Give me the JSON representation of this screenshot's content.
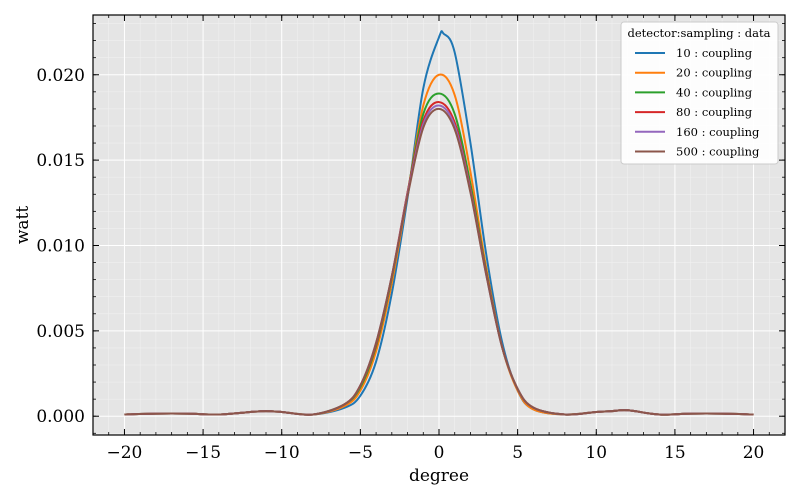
{
  "chart_data": {
    "type": "line",
    "title": "",
    "xlabel": "degree",
    "ylabel": "watt",
    "xlim": [
      -22,
      22
    ],
    "ylim": [
      -0.0011,
      0.0235
    ],
    "xticks": [
      -20,
      -15,
      -10,
      -5,
      0,
      5,
      10,
      15,
      20
    ],
    "xtick_labels": [
      "−20",
      "−15",
      "−10",
      "−5",
      "0",
      "5",
      "10",
      "15",
      "20"
    ],
    "yticks": [
      0.0,
      0.005,
      0.01,
      0.015,
      0.02
    ],
    "ytick_labels": [
      "0.000",
      "0.005",
      "0.010",
      "0.015",
      "0.020"
    ],
    "grid": true,
    "legend": {
      "title": "detector:sampling : data",
      "placement": "top-right"
    },
    "series": [
      {
        "name": "10 : coupling",
        "color": "#1f77b4",
        "x": [
          -20,
          -18,
          -16,
          -14,
          -12,
          -11,
          -10,
          -8,
          -6,
          -5,
          -4,
          -3,
          -2,
          -1,
          0,
          0.3,
          1,
          2,
          3,
          4,
          5,
          6,
          8,
          10,
          11,
          12,
          14,
          16,
          18,
          20
        ],
        "y": [
          0.0001,
          0.00015,
          0.00015,
          0.0001,
          0.00025,
          0.0003,
          0.00025,
          0.0001,
          0.0005,
          0.0012,
          0.0032,
          0.0072,
          0.0128,
          0.0192,
          0.0222,
          0.0224,
          0.0213,
          0.016,
          0.0095,
          0.0044,
          0.0015,
          0.0004,
          0.0001,
          0.00025,
          0.0003,
          0.00035,
          0.0001,
          0.00015,
          0.00015,
          0.0001
        ]
      },
      {
        "name": "20 : coupling",
        "color": "#ff7f0e",
        "x": [
          -20,
          -18,
          -16,
          -14,
          -12,
          -11,
          -10,
          -8,
          -6,
          -5,
          -4,
          -3,
          -2,
          -1,
          0,
          1,
          2,
          3,
          4,
          5,
          6,
          8,
          10,
          11,
          12,
          14,
          16,
          18,
          20
        ],
        "y": [
          0.0001,
          0.00015,
          0.00015,
          0.0001,
          0.00025,
          0.0003,
          0.00025,
          0.0001,
          0.0006,
          0.0015,
          0.0038,
          0.0078,
          0.013,
          0.0182,
          0.02,
          0.0188,
          0.0143,
          0.0087,
          0.0041,
          0.0015,
          0.0004,
          0.0001,
          0.00025,
          0.0003,
          0.00035,
          0.0001,
          0.00015,
          0.00015,
          0.0001
        ]
      },
      {
        "name": "40 : coupling",
        "color": "#2ca02c",
        "x": [
          -20,
          -18,
          -16,
          -14,
          -12,
          -11,
          -10,
          -8,
          -6,
          -5,
          -4,
          -3,
          -2,
          -1,
          0,
          1,
          2,
          3,
          4,
          5,
          6,
          8,
          10,
          11,
          12,
          14,
          16,
          18,
          20
        ],
        "y": [
          0.0001,
          0.00015,
          0.00015,
          0.0001,
          0.00025,
          0.0003,
          0.00025,
          0.0001,
          0.0007,
          0.0017,
          0.0041,
          0.0081,
          0.0131,
          0.0177,
          0.0189,
          0.0177,
          0.0136,
          0.0085,
          0.0041,
          0.0016,
          0.0005,
          0.0001,
          0.00025,
          0.0003,
          0.00035,
          0.0001,
          0.00015,
          0.00015,
          0.0001
        ]
      },
      {
        "name": "80 : coupling",
        "color": "#d62728",
        "x": [
          -20,
          -18,
          -16,
          -14,
          -12,
          -11,
          -10,
          -8,
          -6,
          -5,
          -4,
          -3,
          -2,
          -1,
          0,
          1,
          2,
          3,
          4,
          5,
          6,
          8,
          10,
          11,
          12,
          14,
          16,
          18,
          20
        ],
        "y": [
          0.0001,
          0.00015,
          0.00015,
          0.0001,
          0.00025,
          0.0003,
          0.00025,
          0.0001,
          0.0007,
          0.0018,
          0.0042,
          0.0082,
          0.0131,
          0.0173,
          0.0184,
          0.0172,
          0.0133,
          0.0084,
          0.0041,
          0.0016,
          0.0005,
          0.0001,
          0.00025,
          0.0003,
          0.00035,
          0.0001,
          0.00015,
          0.00015,
          0.0001
        ]
      },
      {
        "name": "160 : coupling",
        "color": "#9467bd",
        "x": [
          -20,
          -18,
          -16,
          -14,
          -12,
          -11,
          -10,
          -8,
          -6,
          -5,
          -4,
          -3,
          -2,
          -1,
          0,
          1,
          2,
          3,
          4,
          5,
          6,
          8,
          10,
          11,
          12,
          14,
          16,
          18,
          20
        ],
        "y": [
          0.0001,
          0.00015,
          0.00015,
          0.0001,
          0.00025,
          0.0003,
          0.00025,
          0.0001,
          0.0007,
          0.0018,
          0.0043,
          0.0082,
          0.013,
          0.0171,
          0.0182,
          0.017,
          0.0132,
          0.0083,
          0.0041,
          0.0016,
          0.0005,
          0.0001,
          0.00025,
          0.0003,
          0.00035,
          0.0001,
          0.00015,
          0.00015,
          0.0001
        ]
      },
      {
        "name": "500 : coupling",
        "color": "#8c564b",
        "x": [
          -20,
          -18,
          -16,
          -14,
          -12,
          -11,
          -10,
          -8,
          -6,
          -5,
          -4,
          -3,
          -2,
          -1,
          0,
          1,
          2,
          3,
          4,
          5,
          6,
          8,
          10,
          11,
          12,
          14,
          16,
          18,
          20
        ],
        "y": [
          0.0001,
          0.00015,
          0.00015,
          0.0001,
          0.00025,
          0.0003,
          0.00025,
          0.0001,
          0.0007,
          0.0018,
          0.0043,
          0.0082,
          0.0129,
          0.0169,
          0.018,
          0.0168,
          0.0131,
          0.0083,
          0.0041,
          0.0016,
          0.0005,
          0.0001,
          0.00025,
          0.0003,
          0.00035,
          0.0001,
          0.00015,
          0.00015,
          0.0001
        ]
      }
    ]
  }
}
